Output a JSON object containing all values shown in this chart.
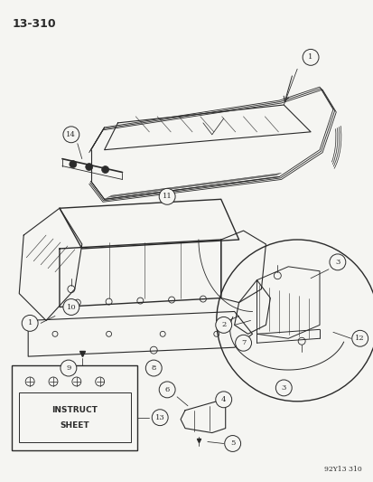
{
  "page_code": "13-310",
  "footer_code": "92Y13 310",
  "bg_color": "#f5f5f2",
  "line_color": "#2a2a2a",
  "fig_width": 4.14,
  "fig_height": 5.33,
  "dpi": 100,
  "circle_r": 0.018,
  "lw_main": 1.0,
  "lw_thin": 0.55,
  "lw_thick": 1.4,
  "font_size_title": 9,
  "font_size_num": 6,
  "font_size_footer": 5.5
}
